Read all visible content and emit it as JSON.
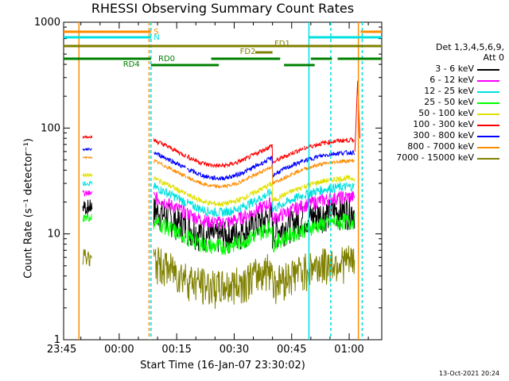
{
  "title": "RHESSI Observing Summary Count Rates",
  "x_label": "Start Time (16-Jan-07 23:30:02)",
  "y_label": "Count Rate (s⁻¹ detector⁻¹)",
  "timestamp": "13-Oct-2021 20:24",
  "detectors_line1": "Det 1,3,4,5,6,9,",
  "detectors_line2": "Att 0",
  "chart_data": {
    "type": "line",
    "y_scale": "log",
    "xlim_minutes": [
      -14.5,
      68.5
    ],
    "ylim": [
      1,
      1000
    ],
    "x_tick_labels": [
      {
        "m": 15,
        "label": "23:45"
      },
      {
        "m": 30,
        "label": "00:00"
      },
      {
        "m": 45,
        "label": "00:15"
      },
      {
        "m": 60,
        "label": "00:30"
      },
      {
        "m": 75,
        "label": "00:45"
      },
      {
        "m": 90,
        "label": "01:00"
      }
    ],
    "y_tick_labels": [
      {
        "v": 1,
        "label": "1"
      },
      {
        "v": 10,
        "label": "10"
      },
      {
        "v": 100,
        "label": "100"
      },
      {
        "v": 1000,
        "label": "1000"
      }
    ],
    "series": [
      {
        "name": "3 - 6 keV",
        "color": "#000000",
        "level": 12,
        "noise": 0.35
      },
      {
        "name": "6 - 12 keV",
        "color": "#ff00ff",
        "level": 16,
        "noise": 0.15
      },
      {
        "name": "12 - 25 keV",
        "color": "#00e0e0",
        "level": 20,
        "noise": 0.1
      },
      {
        "name": "25 - 50 keV",
        "color": "#00ff00",
        "level": 9.5,
        "noise": 0.18
      },
      {
        "name": "50 - 100 keV",
        "color": "#e0e000",
        "level": 24,
        "noise": 0.06
      },
      {
        "name": "100 - 300 keV",
        "color": "#ff0000",
        "level": 55,
        "noise": 0.05
      },
      {
        "name": "300 - 800 keV",
        "color": "#0000ff",
        "level": 42,
        "noise": 0.05
      },
      {
        "name": "800 - 7000 keV",
        "color": "#ff8c00",
        "level": 35,
        "noise": 0.04
      },
      {
        "name": "7000 - 15000 keV",
        "color": "#808000",
        "level": 4,
        "noise": 0.4
      }
    ],
    "flags": [
      {
        "label": "S",
        "color": "#ff8c00"
      },
      {
        "label": "N",
        "color": "#00e0e0"
      },
      {
        "label": "FD1",
        "color": "#808000"
      },
      {
        "label": "FD2",
        "color": "#808000"
      },
      {
        "label": "RD0",
        "color": "#008000"
      },
      {
        "label": "RD4",
        "color": "#008000"
      }
    ]
  }
}
